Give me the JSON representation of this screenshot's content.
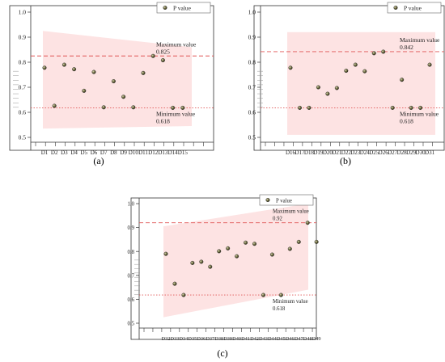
{
  "figure": {
    "panel_labels": [
      "(a)",
      "(b)",
      "(c)"
    ],
    "legend_label": "P value",
    "max_line_label": "Maximum value",
    "min_line_label": "Minimum value"
  },
  "chart_data": [
    {
      "type": "scatter",
      "panel": "(a)",
      "legend": "P value",
      "legend_position": "top-right",
      "categories": [
        "D1",
        "D2",
        "D3",
        "D4",
        "D5",
        "D6",
        "D7",
        "D8",
        "D9",
        "D10",
        "D11",
        "D12",
        "D13",
        "D14",
        "D15"
      ],
      "values": [
        0.778,
        0.626,
        0.79,
        0.772,
        0.686,
        0.761,
        0.62,
        0.724,
        0.662,
        0.62,
        0.757,
        0.825,
        0.808,
        0.618,
        0.618
      ],
      "ylim": [
        0.5,
        1.0
      ],
      "yticks": [
        "0.5",
        "0.6",
        "0.7",
        "0.8",
        "0.9",
        "1.0"
      ],
      "max_value": 0.825,
      "max_text": "0.825",
      "min_value": 0.618,
      "min_text": "0.618",
      "band": {
        "start": [
          0.535,
          0.925
        ],
        "end": [
          0.545,
          0.86
        ]
      },
      "colors": {
        "band": "#fde3e3",
        "max_line": "#e05555",
        "min_line": "#e05555",
        "marker": "#4a4a2a"
      }
    },
    {
      "type": "scatter",
      "panel": "(b)",
      "legend": "P value",
      "legend_position": "top-right",
      "categories": [
        "D16",
        "D17",
        "D18",
        "D19",
        "D20",
        "D21",
        "D22",
        "D23",
        "D24",
        "D25",
        "D26",
        "D27",
        "D28",
        "D29",
        "D30",
        "D31"
      ],
      "values": [
        0.778,
        0.618,
        0.618,
        0.7,
        0.674,
        0.697,
        0.766,
        0.79,
        0.764,
        0.836,
        0.842,
        0.618,
        0.73,
        0.618,
        0.618,
        0.79
      ],
      "ylim": [
        0.5,
        1.0
      ],
      "yticks": [
        "0.5",
        "0.6",
        "0.7",
        "0.8",
        "0.9",
        "1.0"
      ],
      "max_value": 0.842,
      "max_text": "0.842",
      "min_value": 0.618,
      "min_text": "0.618",
      "band": {
        "start": [
          0.51,
          0.92
        ],
        "end": [
          0.51,
          0.92
        ]
      },
      "colors": {
        "band": "#fde3e3",
        "max_line": "#e05555",
        "min_line": "#e05555",
        "marker": "#4a4a2a"
      }
    },
    {
      "type": "scatter",
      "panel": "(c)",
      "legend": "P value",
      "legend_position": "top-right",
      "categories": [
        "D32",
        "D33",
        "D34",
        "D35",
        "D36",
        "D37",
        "D38",
        "D39",
        "D40",
        "D41",
        "D42",
        "D43",
        "D44",
        "D45",
        "D46",
        "D47",
        "D48",
        "D49"
      ],
      "values": [
        0.79,
        0.665,
        0.618,
        0.752,
        0.757,
        0.736,
        0.801,
        0.813,
        0.78,
        0.837,
        0.832,
        0.618,
        0.787,
        0.618,
        0.811,
        0.84,
        0.92,
        0.84
      ],
      "ylim": [
        0.5,
        1.0
      ],
      "yticks": [
        "0.5",
        "0.6",
        "0.7",
        "0.8",
        "0.9",
        "1.0"
      ],
      "max_value": 0.92,
      "max_text": "0.92",
      "min_value": 0.618,
      "min_text": "0.618",
      "band": {
        "start": [
          0.525,
          0.905
        ],
        "end": [
          0.64,
          1.0
        ]
      },
      "colors": {
        "band": "#fde3e3",
        "max_line": "#e05555",
        "min_line": "#e05555",
        "marker": "#4a4a2a"
      }
    }
  ]
}
